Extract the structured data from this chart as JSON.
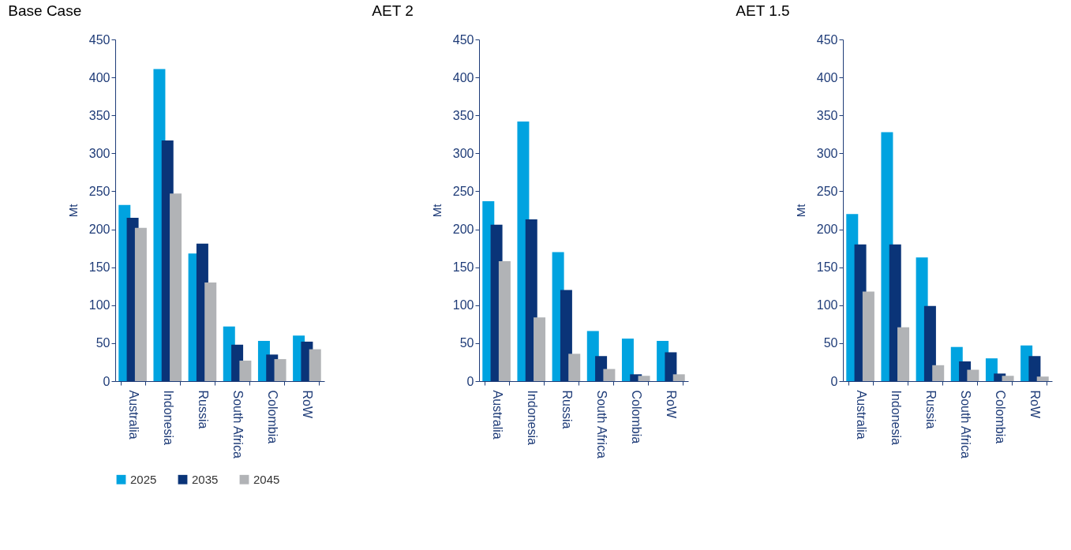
{
  "chart_data": [
    {
      "type": "bar",
      "title": "Base Case",
      "ylabel": "Mt",
      "categories": [
        "Australia",
        "Indonesia",
        "Russia",
        "South Africa",
        "Colombia",
        "RoW"
      ],
      "ylim": [
        0,
        450
      ],
      "yticks": [
        0,
        50,
        100,
        150,
        200,
        250,
        300,
        350,
        400,
        450
      ],
      "grid": false,
      "legend": "bottom",
      "series": [
        {
          "name": "2025",
          "color": "#00a3e0",
          "values": [
            232,
            411,
            168,
            72,
            53,
            60
          ]
        },
        {
          "name": "2035",
          "color": "#0a3478",
          "values": [
            215,
            317,
            181,
            48,
            35,
            52
          ]
        },
        {
          "name": "2045",
          "color": "#b1b3b6",
          "values": [
            202,
            247,
            130,
            27,
            29,
            42
          ]
        }
      ]
    },
    {
      "type": "bar",
      "title": "AET 2",
      "ylabel": "Mt",
      "categories": [
        "Australia",
        "Indonesia",
        "Russia",
        "South Africa",
        "Colombia",
        "RoW"
      ],
      "ylim": [
        0,
        450
      ],
      "yticks": [
        0,
        50,
        100,
        150,
        200,
        250,
        300,
        350,
        400,
        450
      ],
      "grid": false,
      "legend": "bottom",
      "series": [
        {
          "name": "2025",
          "color": "#00a3e0",
          "values": [
            237,
            342,
            170,
            66,
            56,
            53
          ]
        },
        {
          "name": "2035",
          "color": "#0a3478",
          "values": [
            206,
            213,
            120,
            33,
            9,
            38
          ]
        },
        {
          "name": "2045",
          "color": "#b1b3b6",
          "values": [
            158,
            84,
            36,
            16,
            7,
            9
          ]
        }
      ]
    },
    {
      "type": "bar",
      "title": "AET 1.5",
      "ylabel": "Mt",
      "categories": [
        "Australia",
        "Indonesia",
        "Russia",
        "South Africa",
        "Colombia",
        "RoW"
      ],
      "ylim": [
        0,
        450
      ],
      "yticks": [
        0,
        50,
        100,
        150,
        200,
        250,
        300,
        350,
        400,
        450
      ],
      "grid": false,
      "legend": "bottom",
      "series": [
        {
          "name": "2025",
          "color": "#00a3e0",
          "values": [
            220,
            328,
            163,
            45,
            30,
            47
          ]
        },
        {
          "name": "2035",
          "color": "#0a3478",
          "values": [
            180,
            180,
            99,
            26,
            10,
            33
          ]
        },
        {
          "name": "2045",
          "color": "#b1b3b6",
          "values": [
            118,
            71,
            21,
            15,
            7,
            6
          ]
        }
      ]
    }
  ]
}
